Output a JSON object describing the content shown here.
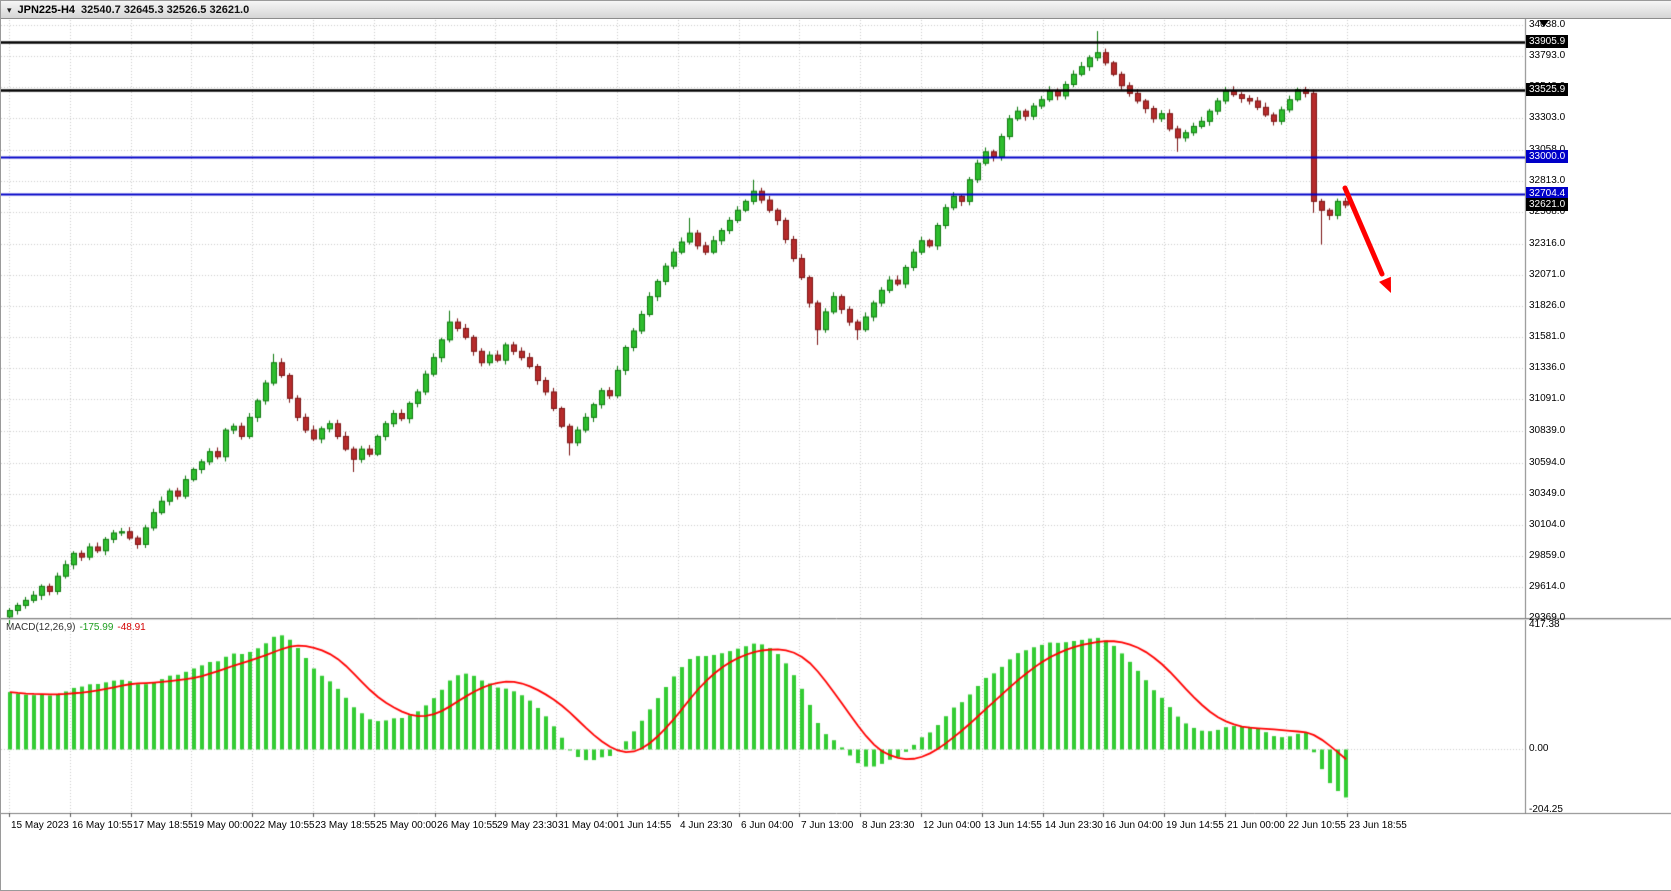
{
  "window": {
    "symbol_title": "JPN225-H4",
    "quote_string": "32540.7 32645.3 32526.5 32621.0"
  },
  "chart_data": {
    "type": "candlestick",
    "symbol": "JPN225",
    "timeframe": "H4",
    "last_quote": {
      "open": "32540.7",
      "high": "32645.3",
      "low": "32526.5",
      "close": "32621.0"
    },
    "price_axis": {
      "min": 29371,
      "max": 34101,
      "values": [
        34038,
        33793,
        33548,
        33303,
        33058,
        32813,
        32568,
        32316,
        32071,
        31826,
        31581,
        31336,
        31091,
        30839,
        30594,
        30349,
        30104,
        29859,
        29614,
        29369
      ],
      "labels": [
        "34038.0",
        "33793.0",
        "33548.0",
        "33303.0",
        "33058.0",
        "32813.0",
        "32568.0",
        "32316.0",
        "32071.0",
        "31826.0",
        "31581.0",
        "31336.0",
        "31091.0",
        "30839.0",
        "30594.0",
        "30349.0",
        "30104.0",
        "29859.0",
        "29614.0",
        "29369.0"
      ]
    },
    "time_axis": {
      "labels": [
        "15 May 2023",
        "16 May 10:55",
        "17 May 18:55",
        "19 May 00:00",
        "22 May 10:55",
        "23 May 18:55",
        "25 May 00:00",
        "26 May 10:55",
        "29 May 23:30",
        "31 May 04:00",
        "1 Jun 14:55",
        "4 Jun 23:30",
        "6 Jun 04:00",
        "7 Jun 13:00",
        "8 Jun 23:30",
        "12 Jun 04:00",
        "13 Jun 14:55",
        "14 Jun 23:30",
        "16 Jun 04:00",
        "19 Jun 14:55",
        "21 Jun 00:00",
        "22 Jun 10:55",
        "23 Jun 18:55"
      ]
    },
    "candles": {
      "up_color": "#2EBD2E",
      "up_border": "#0E7A0E",
      "down_color": "#B62B2B",
      "down_border": "#7C1414",
      "first_open": 29380,
      "closes": [
        29430,
        29470,
        29510,
        29550,
        29620,
        29580,
        29700,
        29790,
        29880,
        29850,
        29930,
        29900,
        29990,
        30040,
        30050,
        30000,
        29950,
        30080,
        30200,
        30290,
        30370,
        30330,
        30460,
        30540,
        30600,
        30680,
        30640,
        30850,
        30880,
        30800,
        30950,
        31080,
        31220,
        31380,
        31280,
        31100,
        30950,
        30850,
        30780,
        30860,
        30900,
        30800,
        30700,
        30620,
        30700,
        30660,
        30800,
        30900,
        30980,
        30940,
        31060,
        31150,
        31290,
        31420,
        31560,
        31700,
        31650,
        31580,
        31470,
        31380,
        31440,
        31400,
        31520,
        31470,
        31420,
        31350,
        31240,
        31150,
        31020,
        30880,
        30750,
        30850,
        30950,
        31050,
        31160,
        31120,
        31320,
        31500,
        31630,
        31760,
        31900,
        32020,
        32140,
        32250,
        32330,
        32400,
        32300,
        32250,
        32340,
        32420,
        32500,
        32580,
        32650,
        32730,
        32660,
        32580,
        32500,
        32350,
        32200,
        32050,
        31850,
        31640,
        31780,
        31900,
        31800,
        31700,
        31640,
        31740,
        31850,
        31950,
        32030,
        32000,
        32130,
        32250,
        32340,
        32300,
        32460,
        32600,
        32690,
        32650,
        32820,
        32950,
        33040,
        33000,
        33160,
        33300,
        33360,
        33320,
        33400,
        33450,
        33520,
        33480,
        33570,
        33650,
        33710,
        33780,
        33820,
        33740,
        33650,
        33560,
        33500,
        33440,
        33380,
        33300,
        33340,
        33220,
        33150,
        33190,
        33240,
        33280,
        33360,
        33440,
        33520,
        33490,
        33460,
        33440,
        33390,
        33330,
        33280,
        33370,
        33450,
        33530,
        33500,
        32650,
        32580,
        32540,
        32650,
        32621
      ],
      "wick_overrides": {
        "0": [
          20,
          60
        ],
        "33": [
          70,
          20
        ],
        "43": [
          20,
          100
        ],
        "55": [
          90,
          20
        ],
        "70": [
          20,
          100
        ],
        "85": [
          120,
          20
        ],
        "93": [
          90,
          25
        ],
        "101": [
          20,
          120
        ],
        "106": [
          20,
          80
        ],
        "136": [
          170,
          25
        ],
        "146": [
          25,
          110
        ],
        "163": [
          30,
          90
        ],
        "164": [
          20,
          270
        ]
      }
    },
    "price_markers": [
      {
        "label": "33905.9",
        "value": 33905.9,
        "color": "#000000",
        "badge": "#000000",
        "line": true,
        "width": 2.5
      },
      {
        "label": "33525.9",
        "value": 33525.9,
        "color": "#000000",
        "badge": "#000000",
        "line": true,
        "width": 2.5
      },
      {
        "label": "33000.0",
        "value": 33000.0,
        "color": "#0000C8",
        "badge": "#0000C8",
        "line": true,
        "width": 2
      },
      {
        "label": "32704.4",
        "value": 32704.4,
        "color": "#0000C8",
        "badge": "#0000C8",
        "line": true,
        "width": 2
      },
      {
        "label": "32621.0",
        "value": 32621.0,
        "color": "#000000",
        "badge": "#000000",
        "line": false,
        "width": 0
      }
    ],
    "indicator": {
      "title": "MACD(12,26,9)",
      "main_value": "-175.99",
      "signal_value": "-48.91",
      "scale_max": 438,
      "scale_min": -216,
      "histogram_color": "#33CC33",
      "signal_color": "#FF0000",
      "axis_labels": [
        {
          "text": "417.38",
          "value": 417.38
        },
        {
          "text": "0.00",
          "value": 0
        },
        {
          "text": "-204.25",
          "value": -204.25
        }
      ]
    },
    "annotation": {
      "shape": "arrow-down-right",
      "color": "#FF0000"
    }
  }
}
